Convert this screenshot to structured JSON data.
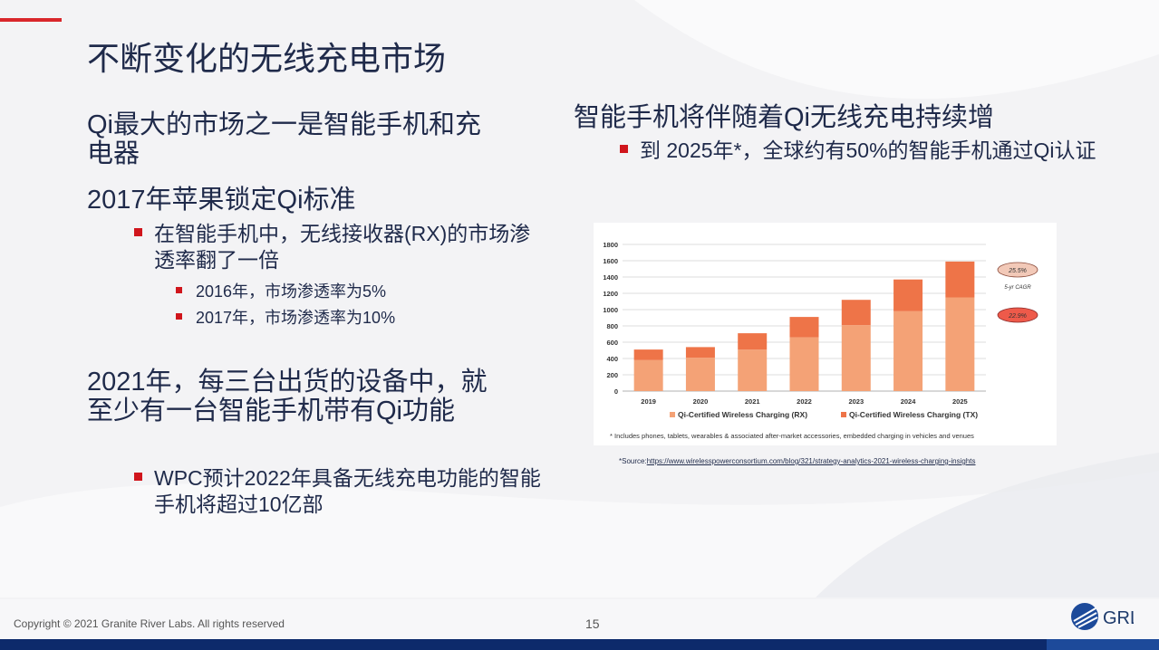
{
  "title": "不断变化的无线充电市场",
  "left": {
    "h1": "Qi最大的市场之一是智能手机和充电器",
    "h2": "2017年苹果锁定Qi标准",
    "b1": "在智能手机中，无线接收器(RX)的市场渗透率翻了一倍",
    "b1a": "2016年，市场渗透率为5%",
    "b1b": "2017年，市场渗透率为10%",
    "h3": "2021年，每三台出货的设备中，就至少有一台智能手机带有Qi功能",
    "b2": "WPC预计2022年具备无线充电功能的智能手机将超过10亿部"
  },
  "right": {
    "h1": "智能手机将伴随着Qi无线充电持续增",
    "b1": "到 2025年*，全球约有50%的智能手机通过Qi认证"
  },
  "chart_data": {
    "type": "bar",
    "stacked": true,
    "categories": [
      "2019",
      "2020",
      "2021",
      "2022",
      "2023",
      "2024",
      "2025"
    ],
    "series": [
      {
        "name": "Qi-Certified Wireless Charging (RX)",
        "color": "#f4a276",
        "values": [
          380,
          410,
          510,
          660,
          810,
          980,
          1150
        ]
      },
      {
        "name": "Qi-Certified Wireless Charging (TX)",
        "color": "#ee7448",
        "values": [
          130,
          130,
          200,
          250,
          310,
          390,
          440
        ]
      }
    ],
    "ylim": [
      0,
      1800
    ],
    "yticks": [
      "0",
      "200",
      "400",
      "600",
      "800",
      "1000",
      "1200",
      "1400",
      "1600",
      "1800"
    ],
    "grid": true,
    "legend": "bottom",
    "cagr_top": "25.5%",
    "cagr_label": "5-yr CAGR",
    "cagr_bottom": "22.9%",
    "footnote": "* Includes phones, tablets, wearables & associated after-market accessories, embedded charging in vehicles and venues"
  },
  "source_prefix": "*Source:",
  "source_url": "https://www.wirelesspowerconsortium.com/blog/321/strategy-analytics-2021-wireless-charging-insights",
  "footer": {
    "copyright": "Copyright © 2021 Granite River Labs. All rights reserved",
    "page": "15",
    "logo_text": "GRL"
  },
  "colors": {
    "accent": "#d9262a",
    "navy": "#0d2a6b",
    "text": "#1f2a4a"
  }
}
